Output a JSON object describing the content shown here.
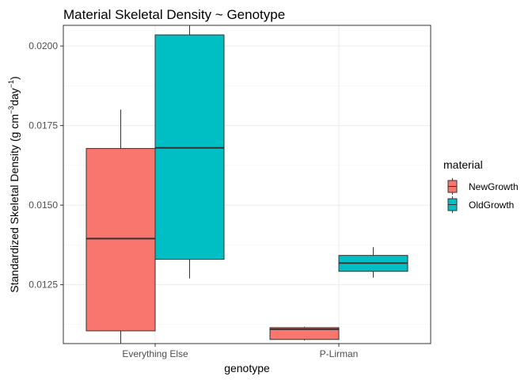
{
  "chart_data": {
    "type": "boxplot",
    "title": "Material Skeletal Density ~ Genotype",
    "xlabel": "genotype",
    "ylabel": {
      "main": "Standardized Skeletal Density (g cm",
      "sup1": "−3",
      "mid": "day",
      "sup2": "−1",
      "end": ")"
    },
    "categories": [
      "Everything Else",
      "P-Lirman"
    ],
    "yticks": [
      "0.0125",
      "0.0150",
      "0.0175",
      "0.0200"
    ],
    "ylim": [
      0.01065,
      0.02065
    ],
    "grid": true,
    "legend": {
      "title": "material",
      "position": "right"
    },
    "series": [
      {
        "name": "NewGrowth",
        "color": "#F8766D",
        "boxes": [
          {
            "whisker_low": 0.01055,
            "q1": 0.01105,
            "median": 0.01395,
            "q3": 0.01678,
            "whisker_high": 0.018
          },
          {
            "whisker_low": 0.01075,
            "q1": 0.01078,
            "median": 0.0111,
            "q3": 0.01115,
            "whisker_high": 0.01118
          }
        ]
      },
      {
        "name": "OldGrowth",
        "color": "#00BFC4",
        "boxes": [
          {
            "whisker_low": 0.0127,
            "q1": 0.0133,
            "median": 0.0168,
            "q3": 0.02035,
            "whisker_high": 0.0208
          },
          {
            "whisker_low": 0.01272,
            "q1": 0.01292,
            "median": 0.01318,
            "q3": 0.01342,
            "whisker_high": 0.01368
          }
        ]
      }
    ]
  }
}
